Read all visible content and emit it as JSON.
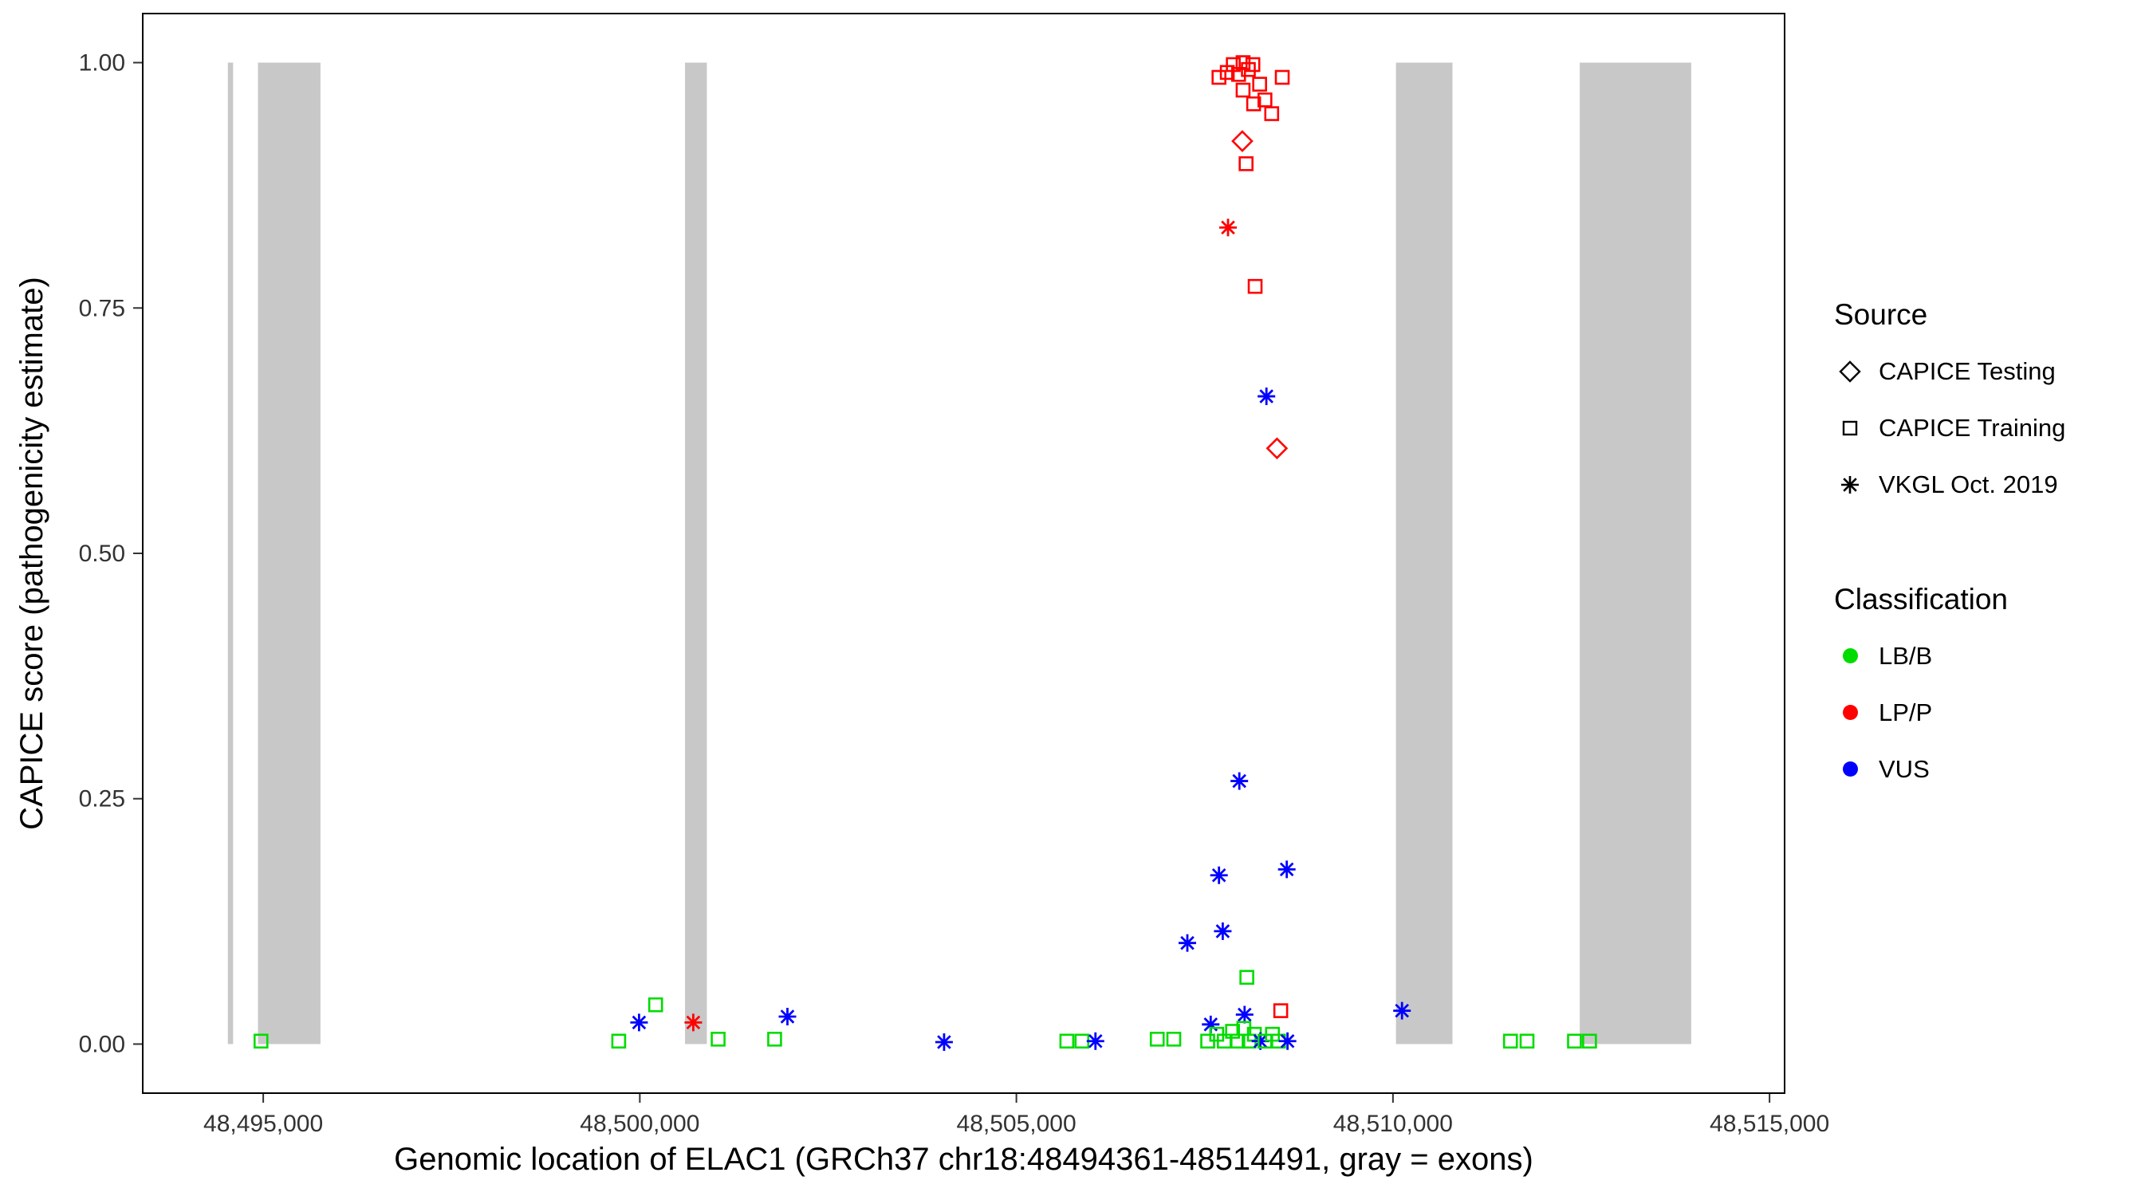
{
  "legend": {
    "source": {
      "title": "Source",
      "items": [
        {
          "label": "CAPICE Testing",
          "shape": "diamond"
        },
        {
          "label": "CAPICE Training",
          "shape": "square"
        },
        {
          "label": "VKGL Oct. 2019",
          "shape": "asterisk"
        }
      ]
    },
    "classification": {
      "title": "Classification",
      "items": [
        {
          "label": "LB/B",
          "color": "#00DC00"
        },
        {
          "label": "LP/P",
          "color": "#FF0000"
        },
        {
          "label": "VUS",
          "color": "#0000FF"
        }
      ]
    }
  },
  "chart_data": {
    "type": "scatter",
    "title": "",
    "xlabel": "Genomic location of ELAC1 (GRCh37 chr18:48494361-48514491, gray = exons)",
    "ylabel": "CAPICE score (pathogenicity estimate)",
    "xlim": [
      48493400,
      48515200
    ],
    "ylim": [
      -0.05,
      1.05
    ],
    "grid": false,
    "legend_position": "right",
    "x_ticks": [
      {
        "value": 48495000,
        "label": "48,495,000"
      },
      {
        "value": 48500000,
        "label": "48,500,000"
      },
      {
        "value": 48505000,
        "label": "48,505,000"
      },
      {
        "value": 48510000,
        "label": "48,510,000"
      },
      {
        "value": 48515000,
        "label": "48,515,000"
      }
    ],
    "y_ticks": [
      {
        "value": 0.0,
        "label": "0.00"
      },
      {
        "value": 0.25,
        "label": "0.25"
      },
      {
        "value": 0.5,
        "label": "0.50"
      },
      {
        "value": 0.75,
        "label": "0.75"
      },
      {
        "value": 1.0,
        "label": "1.00"
      }
    ],
    "exon_color": "#C8C8C8",
    "exons": [
      {
        "start": 48494530,
        "end": 48494600
      },
      {
        "start": 48494930,
        "end": 48495760
      },
      {
        "start": 48500600,
        "end": 48500890
      },
      {
        "start": 48510040,
        "end": 48510790
      },
      {
        "start": 48512480,
        "end": 48513960
      }
    ],
    "colors": {
      "LB/B": "#00DC00",
      "LP/P": "#FF0000",
      "VUS": "#0000FF"
    },
    "shapes": {
      "testing": "diamond",
      "training": "square",
      "vkgl": "asterisk"
    },
    "points_format": [
      "genomic_position",
      "capice_score",
      "source",
      "classification"
    ],
    "points": [
      [
        48507690,
        0.985,
        "training",
        "LP/P"
      ],
      [
        48507800,
        0.99,
        "training",
        "LP/P"
      ],
      [
        48507880,
        0.998,
        "training",
        "LP/P"
      ],
      [
        48507950,
        0.988,
        "training",
        "LP/P"
      ],
      [
        48508010,
        1.0,
        "training",
        "LP/P"
      ],
      [
        48508010,
        0.972,
        "training",
        "LP/P"
      ],
      [
        48508080,
        0.993,
        "training",
        "LP/P"
      ],
      [
        48508140,
        0.998,
        "training",
        "LP/P"
      ],
      [
        48508150,
        0.958,
        "training",
        "LP/P"
      ],
      [
        48508230,
        0.978,
        "training",
        "LP/P"
      ],
      [
        48508300,
        0.962,
        "training",
        "LP/P"
      ],
      [
        48508390,
        0.948,
        "training",
        "LP/P"
      ],
      [
        48508530,
        0.985,
        "training",
        "LP/P"
      ],
      [
        48508000,
        0.92,
        "testing",
        "LP/P"
      ],
      [
        48508050,
        0.897,
        "training",
        "LP/P"
      ],
      [
        48507810,
        0.832,
        "vkgl",
        "LP/P"
      ],
      [
        48508170,
        0.772,
        "training",
        "LP/P"
      ],
      [
        48508320,
        0.66,
        "vkgl",
        "VUS"
      ],
      [
        48508460,
        0.607,
        "testing",
        "LP/P"
      ],
      [
        48507960,
        0.268,
        "vkgl",
        "VUS"
      ],
      [
        48507690,
        0.172,
        "vkgl",
        "VUS"
      ],
      [
        48508590,
        0.178,
        "vkgl",
        "VUS"
      ],
      [
        48507740,
        0.115,
        "vkgl",
        "VUS"
      ],
      [
        48507270,
        0.103,
        "vkgl",
        "VUS"
      ],
      [
        48508060,
        0.068,
        "training",
        "LB/B"
      ],
      [
        48508510,
        0.034,
        "training",
        "LP/P"
      ],
      [
        48510120,
        0.034,
        "vkgl",
        "VUS"
      ],
      [
        48494970,
        0.003,
        "training",
        "LB/B"
      ],
      [
        48499720,
        0.003,
        "training",
        "LB/B"
      ],
      [
        48499990,
        0.022,
        "vkgl",
        "VUS"
      ],
      [
        48500210,
        0.04,
        "training",
        "LB/B"
      ],
      [
        48500710,
        0.022,
        "vkgl",
        "LP/P"
      ],
      [
        48501040,
        0.005,
        "training",
        "LB/B"
      ],
      [
        48501790,
        0.005,
        "training",
        "LB/B"
      ],
      [
        48501960,
        0.028,
        "vkgl",
        "VUS"
      ],
      [
        48504040,
        0.002,
        "vkgl",
        "VUS"
      ],
      [
        48505670,
        0.003,
        "training",
        "LB/B"
      ],
      [
        48505870,
        0.003,
        "training",
        "LB/B"
      ],
      [
        48506050,
        0.003,
        "vkgl",
        "VUS"
      ],
      [
        48506870,
        0.005,
        "training",
        "LB/B"
      ],
      [
        48507090,
        0.005,
        "training",
        "LB/B"
      ],
      [
        48507580,
        0.02,
        "vkgl",
        "VUS"
      ],
      [
        48507540,
        0.003,
        "training",
        "LB/B"
      ],
      [
        48507660,
        0.01,
        "training",
        "LB/B"
      ],
      [
        48507760,
        0.003,
        "training",
        "LB/B"
      ],
      [
        48507870,
        0.013,
        "training",
        "LB/B"
      ],
      [
        48507940,
        0.003,
        "training",
        "LB/B"
      ],
      [
        48508030,
        0.03,
        "vkgl",
        "VUS"
      ],
      [
        48508020,
        0.016,
        "training",
        "LB/B"
      ],
      [
        48508090,
        0.003,
        "training",
        "LB/B"
      ],
      [
        48508160,
        0.01,
        "training",
        "LB/B"
      ],
      [
        48508240,
        0.003,
        "vkgl",
        "VUS"
      ],
      [
        48508300,
        0.003,
        "training",
        "LB/B"
      ],
      [
        48508400,
        0.01,
        "training",
        "LB/B"
      ],
      [
        48508480,
        0.003,
        "training",
        "LB/B"
      ],
      [
        48508600,
        0.003,
        "vkgl",
        "VUS"
      ],
      [
        48511560,
        0.003,
        "training",
        "LB/B"
      ],
      [
        48511780,
        0.003,
        "training",
        "LB/B"
      ],
      [
        48512410,
        0.003,
        "training",
        "LB/B"
      ],
      [
        48512610,
        0.003,
        "training",
        "LB/B"
      ]
    ]
  }
}
